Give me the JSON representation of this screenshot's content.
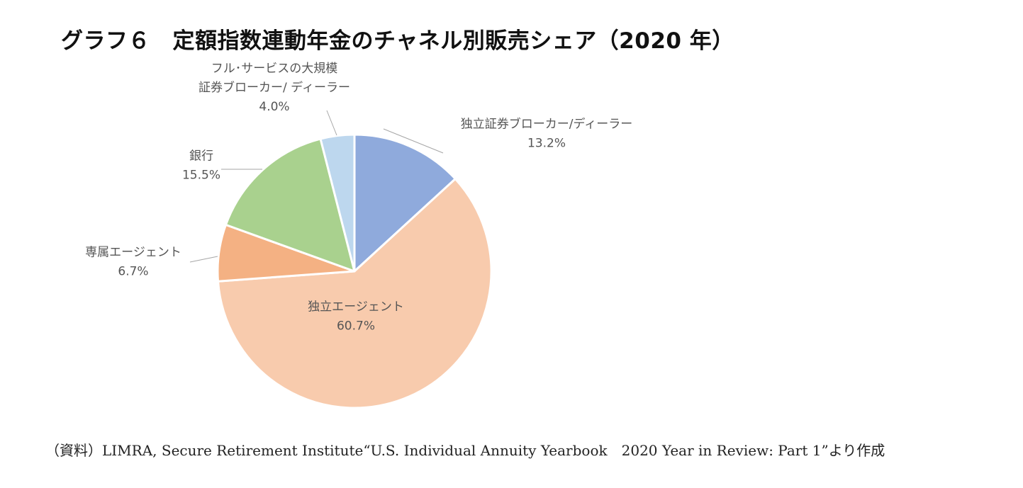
{
  "title": "グラフ６　定額指数連動年金のチャネル別販売シェア（2020 年）",
  "chart_data": {
    "type": "pie",
    "title": "グラフ６　定額指数連動年金のチャネル別販売シェア（2020 年）",
    "slices": [
      {
        "label": [
          "独立証券ブローカー/ディーラー"
        ],
        "value": 13.2,
        "value_label": "13.2%",
        "color": "#8faadc"
      },
      {
        "label": [
          "独立エージェント"
        ],
        "value": 60.7,
        "value_label": "60.7%",
        "color": "#f8cbad"
      },
      {
        "label": [
          "専属エージェント"
        ],
        "value": 6.7,
        "value_label": "6.7%",
        "color": "#f4b183"
      },
      {
        "label": [
          "銀行"
        ],
        "value": 15.5,
        "value_label": "15.5%",
        "color": "#a9d18e"
      },
      {
        "label": [
          "フル･サービスの大規模",
          "証券ブローカー/ ディーラー"
        ],
        "value": 4.0,
        "value_label": "4.0%",
        "color": "#bdd7ee"
      }
    ],
    "start": "12 o'clock",
    "direction": "clockwise",
    "legend": "none",
    "separator_color": "#ffffff",
    "leader_line_color": "#a6a6a6"
  },
  "source": "（資料）LIMRA, Secure Retirement Institute“U.S. Individual Annuity Yearbook　2020 Year in Review: Part 1”より作成"
}
